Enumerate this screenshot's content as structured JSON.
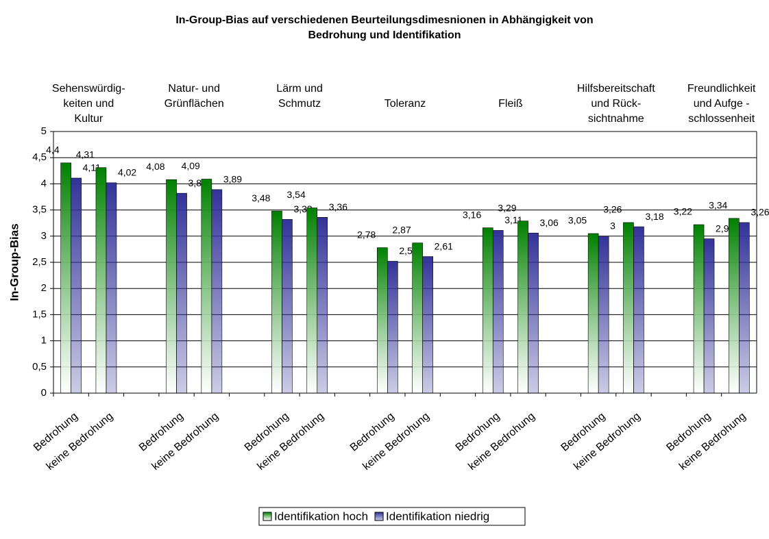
{
  "chart_data": {
    "type": "bar",
    "title": [
      "In-Group-Bias auf verschiedenen Beurteilungsdimesnionen in Abhängigkeit von",
      "Bedrohung und Identifikation"
    ],
    "ylabel": "In-Group-Bias",
    "groups": [
      [
        "Sehenswürdig-",
        "keiten und",
        "Kultur"
      ],
      [
        "Natur- und",
        "Grünflächen"
      ],
      [
        "Lärm und",
        "Schmutz"
      ],
      [
        "Toleranz"
      ],
      [
        "Fleiß"
      ],
      [
        "Hilfsbereitschaft",
        "und Rück-",
        "sichtnahme"
      ],
      [
        "Freundlichkeit",
        "und Aufge -",
        "schlossenheit"
      ]
    ],
    "categories": [
      "Bedrohung",
      "keine Bedrohung",
      null,
      "Bedrohung",
      "keine Bedrohung",
      null,
      "Bedrohung",
      "keine Bedrohung",
      null,
      "Bedrohung",
      "keine Bedrohung",
      null,
      "Bedrohung",
      "keine Bedrohung",
      null,
      "Bedrohung",
      "keine Bedrohung",
      null,
      "Bedrohung",
      "keine Bedrohung"
    ],
    "series": [
      {
        "name": "Identifikation hoch",
        "color": "#008000",
        "values": [
          4.4,
          4.31,
          null,
          4.08,
          4.09,
          null,
          3.48,
          3.54,
          null,
          2.78,
          2.87,
          null,
          3.16,
          3.29,
          null,
          3.05,
          3.26,
          null,
          3.22,
          3.34
        ],
        "value_labels": [
          "4,4",
          "4,31",
          null,
          "4,08",
          "4,09",
          null,
          "3,48",
          "3,54",
          null,
          "2,78",
          "2,87",
          null,
          "3,16",
          "3,29",
          null,
          "3,05",
          "3,26",
          null,
          "3,22",
          "3,34"
        ]
      },
      {
        "name": "Identifikation niedrig",
        "color": "#333399",
        "values": [
          4.11,
          4.02,
          null,
          3.82,
          3.89,
          null,
          3.32,
          3.36,
          null,
          2.52,
          2.61,
          null,
          3.11,
          3.06,
          null,
          3,
          3.18,
          null,
          2.95,
          3.26
        ],
        "value_labels": [
          "4,11",
          "4,02",
          null,
          "3,82",
          "3,89",
          null,
          "3,32",
          "3,36",
          null,
          "2,52",
          "2,61",
          null,
          "3,11",
          "3,06",
          null,
          "3",
          "3,18",
          null,
          "2,95",
          "3,26"
        ]
      }
    ],
    "ylim": [
      0,
      5
    ],
    "yticks": [
      0,
      {
        "value": 0.5,
        "label": "0,5"
      },
      1,
      {
        "value": 1.5,
        "label": "1,5"
      },
      2,
      {
        "value": 2.5,
        "label": "2,5"
      },
      3,
      {
        "value": 3.5,
        "label": "3,5"
      },
      4,
      {
        "value": 4.5,
        "label": "4,5"
      },
      5
    ],
    "grid": true,
    "legend": "bottom"
  }
}
